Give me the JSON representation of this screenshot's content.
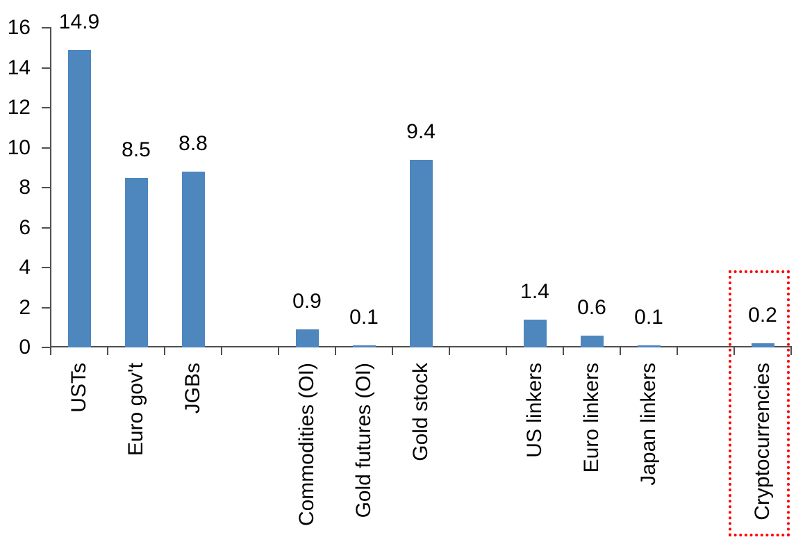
{
  "chart_data": {
    "type": "bar",
    "title": "",
    "xlabel": "",
    "ylabel": "",
    "ylim": [
      0,
      16
    ],
    "ytick_interval": 2,
    "yticks": [
      0,
      2,
      4,
      6,
      8,
      10,
      12,
      14,
      16
    ],
    "grid": false,
    "legend": false,
    "num_category_slots": 13,
    "value_label_decimals": 1,
    "series": [
      {
        "label": "USTs",
        "value": 14.9,
        "slot": 0,
        "highlighted": false
      },
      {
        "label": "Euro gov't",
        "value": 8.5,
        "slot": 1,
        "highlighted": false
      },
      {
        "label": "JGBs",
        "value": 8.8,
        "slot": 2,
        "highlighted": false
      },
      {
        "label": "Commodities (OI)",
        "value": 0.9,
        "slot": 4,
        "highlighted": false
      },
      {
        "label": "Gold futures (OI)",
        "value": 0.1,
        "slot": 5,
        "highlighted": false
      },
      {
        "label": "Gold stock",
        "value": 9.4,
        "slot": 6,
        "highlighted": false
      },
      {
        "label": "US linkers",
        "value": 1.4,
        "slot": 8,
        "highlighted": false
      },
      {
        "label": "Euro linkers",
        "value": 0.6,
        "slot": 9,
        "highlighted": false
      },
      {
        "label": "Japan linkers",
        "value": 0.1,
        "slot": 10,
        "highlighted": false
      },
      {
        "label": "Cryptocurrencies",
        "value": 0.2,
        "slot": 12,
        "highlighted": true
      }
    ],
    "highlight": {
      "category": "Cryptocurrencies",
      "style": "red-dotted-box"
    },
    "colors": {
      "bar": "#4e86be",
      "axis": "#4f4f4f",
      "text": "#000000",
      "highlight_box": "#ff0000",
      "background": "#ffffff"
    }
  }
}
